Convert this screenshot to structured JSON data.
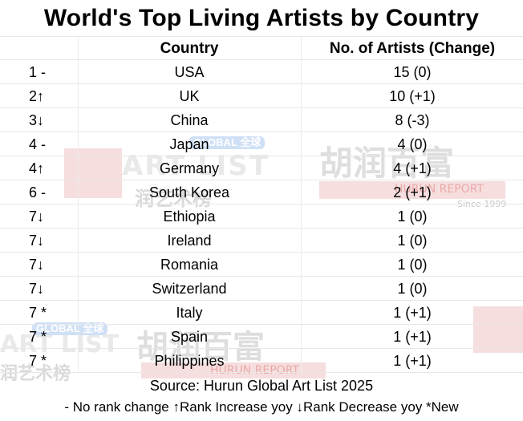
{
  "title": "World's Top Living Artists by Country",
  "columns": {
    "rank": "",
    "country": "Country",
    "artists": "No. of Artists (Change)"
  },
  "rows": [
    {
      "rank": "1 -",
      "country": "USA",
      "artists": "15  (0)"
    },
    {
      "rank": "2↑",
      "country": "UK",
      "artists": "10  (+1)"
    },
    {
      "rank": "3↓",
      "country": "China",
      "artists": "8  (-3)"
    },
    {
      "rank": "4 -",
      "country": "Japan",
      "artists": "4  (0)"
    },
    {
      "rank": "4↑",
      "country": "Germany",
      "artists": "4  (+1)"
    },
    {
      "rank": "6 -",
      "country": "South Korea",
      "artists": "2  (+1)"
    },
    {
      "rank": "7↓",
      "country": "Ethiopia",
      "artists": "1  (0)"
    },
    {
      "rank": "7↓",
      "country": "Ireland",
      "artists": "1  (0)"
    },
    {
      "rank": "7↓",
      "country": "Romania",
      "artists": "1  (0)"
    },
    {
      "rank": "7↓",
      "country": "Switzerland",
      "artists": "1  (0)"
    },
    {
      "rank": "7 *",
      "country": "Italy",
      "artists": "1  (+1)"
    },
    {
      "rank": "7 *",
      "country": "Spain",
      "artists": "1  (+1)"
    },
    {
      "rank": "7 *",
      "country": "Philippines",
      "artists": "1  (+1)"
    }
  ],
  "source": "Source: Hurun Global Art List 2025",
  "legend": "- No rank change  ↑Rank Increase yoy ↓Rank Decrease yoy  *New",
  "watermarks": {
    "art_list_a": "ART LIST",
    "art_list_b": "ART LIST",
    "art_cn_a": "润艺术榜",
    "art_cn_b": "润艺术榜",
    "badge_a": "GLOBAL 全球",
    "badge_b": "GLOBAL 全球",
    "hurun_cn_a": "胡润百富",
    "hurun_cn_b": "胡润百富",
    "hurun_report_a": "HURUN REPORT",
    "hurun_report_b": "HURUN REPORT",
    "since": "Since 1999"
  },
  "colors": {
    "background": "#ffffff",
    "text": "#000000",
    "gridline": "#e7e7e7",
    "watermark_red": "#f6dede",
    "watermark_gray": "#d9d9d9",
    "watermark_blue": "#cfe0f6"
  }
}
